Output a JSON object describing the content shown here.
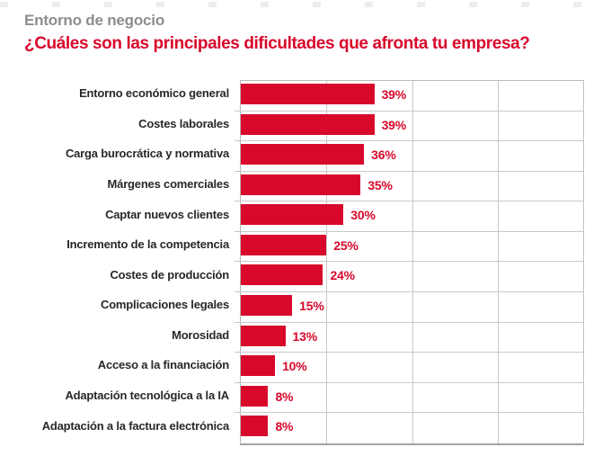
{
  "page": {
    "title": "Entorno de negocio",
    "subtitle": "¿Cuáles son las principales dificultades que afronta tu empresa?"
  },
  "colors": {
    "accent_red": "#d8082b",
    "title_gray": "#8d8d8d",
    "label_dark": "#282828",
    "gridline_gray": "#c8c8c8"
  },
  "chart_data": {
    "type": "bar",
    "orientation": "horizontal",
    "title": "Entorno de negocio",
    "subtitle": "¿Cuáles son las principales dificultades que afronta tu empresa?",
    "categories": [
      "Entorno económico general",
      "Costes laborales",
      "Carga burocrática y normativa",
      "Márgenes comerciales",
      "Captar nuevos clientes",
      "Incremento de la competencia",
      "Costes de producción",
      "Complicaciones legales",
      "Morosidad",
      "Acceso a la financiación",
      "Adaptación tecnológica a la IA",
      "Adaptación a la factura electrónica"
    ],
    "values": [
      39,
      39,
      36,
      35,
      30,
      25,
      24,
      15,
      13,
      10,
      8,
      8
    ],
    "value_labels": [
      "39%",
      "39%",
      "36%",
      "35%",
      "30%",
      "25%",
      "24%",
      "15%",
      "13%",
      "10%",
      "8%",
      "8%"
    ],
    "value_suffix": "%",
    "xlim": [
      0,
      100
    ],
    "gridline_step": 25,
    "grid": true,
    "legend": false,
    "bar_color": "#d8082b",
    "value_label_color": "#d8082b"
  }
}
